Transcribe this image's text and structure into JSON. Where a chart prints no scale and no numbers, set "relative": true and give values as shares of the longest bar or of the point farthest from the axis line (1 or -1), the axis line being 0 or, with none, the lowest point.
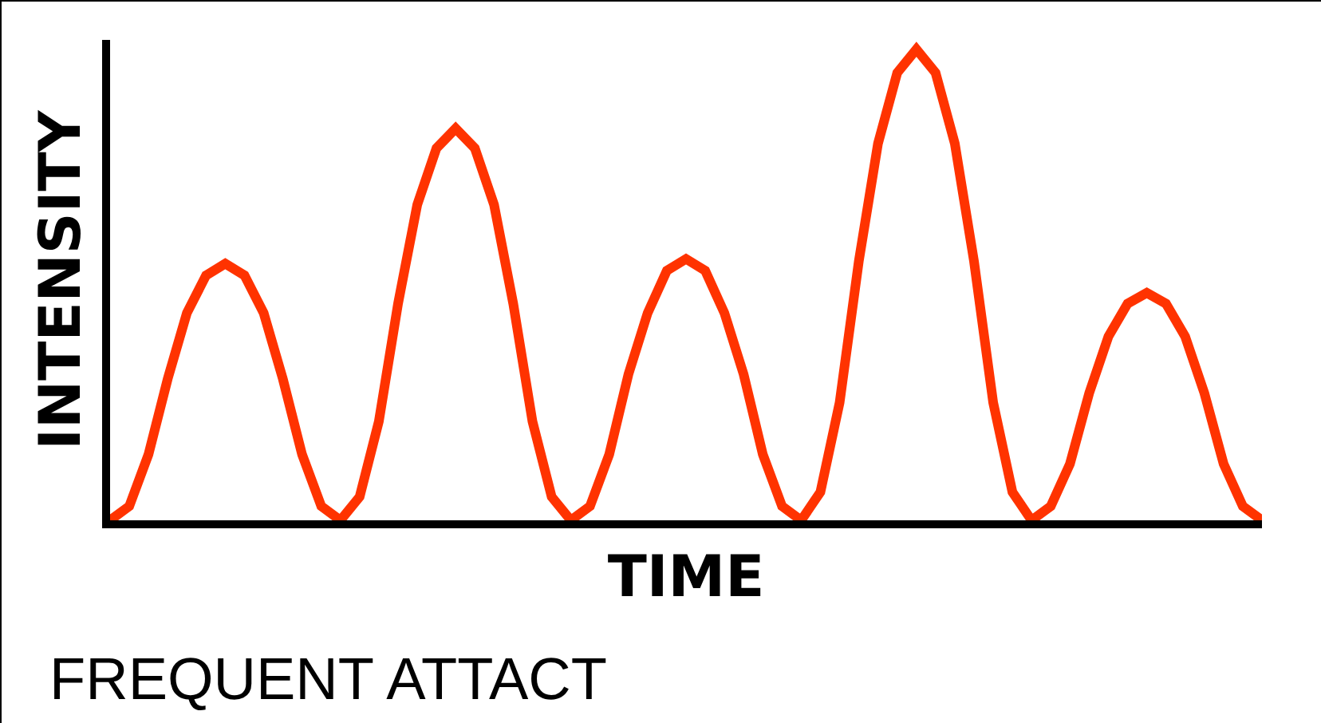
{
  "chart_data": {
    "type": "line",
    "relative": true,
    "xlabel": "TIME",
    "ylabel": "INTENSITY",
    "annotations": [
      "FREQUENT ATTACT"
    ],
    "categories": [
      null,
      null,
      null,
      null,
      null,
      null,
      null,
      null,
      null,
      null,
      null,
      null,
      null,
      null,
      null,
      null,
      null,
      null,
      null,
      null,
      null,
      null,
      null,
      null,
      null,
      null,
      null,
      null,
      null,
      null,
      null,
      null,
      null,
      null,
      null,
      null,
      null,
      null,
      null,
      null,
      null,
      null,
      null,
      null,
      null,
      null,
      null,
      null,
      null,
      null,
      null,
      null,
      null,
      null,
      null,
      null,
      null,
      null,
      null,
      null,
      null
    ],
    "series": [
      {
        "color": "#ff3300",
        "values": [
          0,
          0.03,
          0.14,
          0.3,
          0.44,
          0.52,
          0.545,
          0.52,
          0.44,
          0.3,
          0.14,
          0.03,
          0,
          0.05,
          0.21,
          0.46,
          0.67,
          0.79,
          0.832,
          0.79,
          0.67,
          0.46,
          0.21,
          0.05,
          0,
          0.03,
          0.14,
          0.31,
          0.44,
          0.53,
          0.555,
          0.53,
          0.44,
          0.31,
          0.14,
          0.03,
          0,
          0.06,
          0.25,
          0.55,
          0.8,
          0.95,
          1,
          0.95,
          0.8,
          0.55,
          0.25,
          0.06,
          0,
          0.03,
          0.12,
          0.27,
          0.39,
          0.46,
          0.483,
          0.46,
          0.39,
          0.27,
          0.12,
          0.03,
          0
        ]
      }
    ],
    "marker": "none",
    "line_style": "solid"
  }
}
